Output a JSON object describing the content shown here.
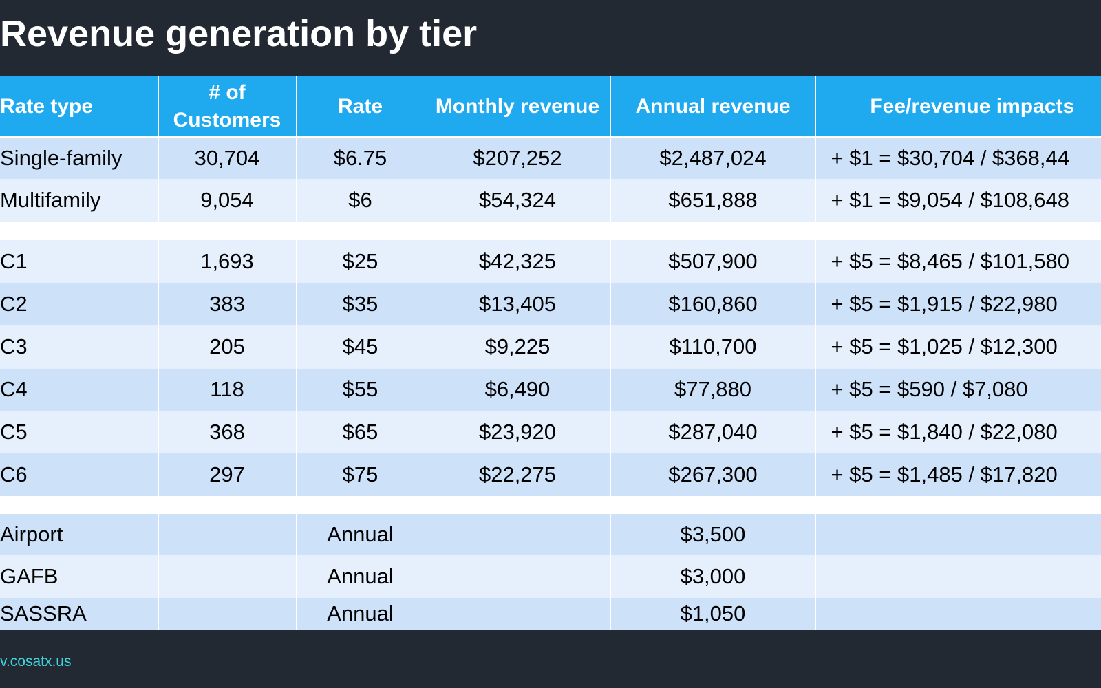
{
  "header": {
    "title": "Revenue generation by tier"
  },
  "table": {
    "columns": [
      "Rate type",
      "# of Customers",
      "Rate",
      "Monthly revenue",
      "Annual revenue",
      "Fee/revenue impacts"
    ],
    "groups": [
      [
        [
          "Single-family",
          "30,704",
          "$6.75",
          "$207,252",
          "$2,487,024",
          "+ $1 =  $30,704 / $368,44"
        ],
        [
          "Multifamily",
          "9,054",
          "$6",
          "$54,324",
          "$651,888",
          "+ $1 =  $9,054 / $108,648"
        ]
      ],
      [
        [
          "C1",
          "1,693",
          "$25",
          "$42,325",
          "$507,900",
          "+ $5 =  $8,465 / $101,580"
        ],
        [
          "C2",
          "383",
          "$35",
          "$13,405",
          "$160,860",
          "+ $5 =  $1,915 / $22,980"
        ],
        [
          "C3",
          "205",
          "$45",
          "$9,225",
          "$110,700",
          "+ $5 =  $1,025 / $12,300"
        ],
        [
          "C4",
          "118",
          "$55",
          "$6,490",
          "$77,880",
          "+ $5 =  $590 / $7,080"
        ],
        [
          "C5",
          "368",
          "$65",
          "$23,920",
          "$287,040",
          "+ $5 =  $1,840 / $22,080"
        ],
        [
          "C6",
          "297",
          "$75",
          "$22,275",
          "$267,300",
          "+ $5 =  $1,485 / $17,820"
        ]
      ],
      [
        [
          "Airport",
          null,
          "Annual",
          null,
          "$3,500",
          null
        ],
        [
          "GAFB",
          null,
          "Annual",
          null,
          "$3,000",
          null
        ],
        [
          "SASSRA",
          null,
          "Annual",
          null,
          "$1,050",
          null
        ]
      ]
    ]
  },
  "footer": {
    "url": "v.cosatx.us"
  }
}
